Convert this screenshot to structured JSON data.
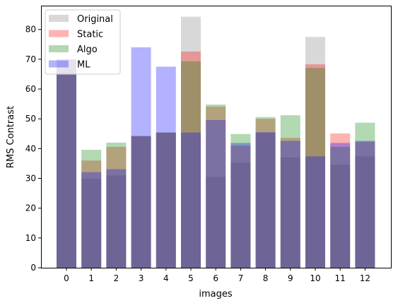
{
  "chart_data": {
    "type": "bar",
    "xlabel": "images",
    "ylabel": "RMS Contrast",
    "categories": [
      "0",
      "1",
      "2",
      "3",
      "4",
      "5",
      "6",
      "7",
      "8",
      "9",
      "10",
      "11",
      "12"
    ],
    "ylim": [
      0,
      88
    ],
    "yticks": [
      0,
      10,
      20,
      30,
      40,
      50,
      60,
      70,
      80
    ],
    "grid": false,
    "legend_position": "top-left",
    "overlay": true,
    "bar_alpha": 0.3,
    "series": [
      {
        "name": "Original",
        "color": "#7f7f7f",
        "values": [
          65.5,
          29.8,
          31.0,
          44.2,
          45.4,
          84.3,
          30.5,
          35.3,
          45.3,
          37.0,
          77.5,
          34.6,
          37.4
        ]
      },
      {
        "name": "Static",
        "color": "#ff0000",
        "values": [
          70.0,
          36.0,
          40.6,
          44.2,
          45.4,
          72.6,
          54.1,
          41.0,
          50.0,
          43.6,
          68.3,
          45.1,
          42.3
        ]
      },
      {
        "name": "Algo",
        "color": "#008000",
        "values": [
          70.0,
          39.6,
          42.0,
          44.2,
          45.4,
          69.3,
          54.8,
          44.9,
          50.6,
          51.2,
          67.1,
          40.6,
          48.7
        ]
      },
      {
        "name": "ML",
        "color": "#0000ff",
        "values": [
          70.0,
          32.1,
          33.1,
          74.0,
          67.5,
          45.4,
          49.6,
          41.9,
          45.5,
          42.6,
          37.4,
          41.9,
          42.6
        ]
      }
    ]
  }
}
